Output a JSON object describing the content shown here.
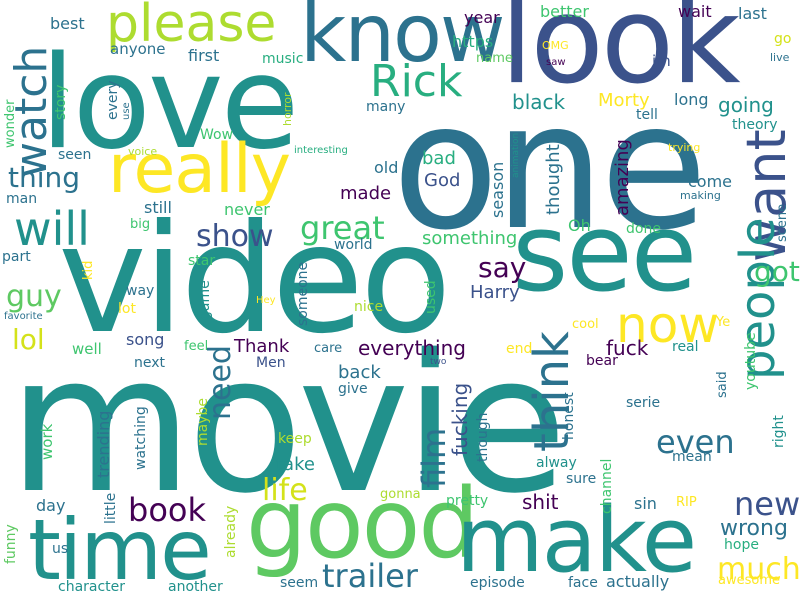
{
  "words": {
    "movie": "movie",
    "video": "video",
    "one": "one",
    "love": "love",
    "look": "look",
    "see": "see",
    "know": "know",
    "good": "good",
    "make": "make",
    "time": "time",
    "really": "really",
    "please": "please",
    "watch": "watch",
    "Rick": "Rick",
    "will": "will",
    "want": "want",
    "people": "people",
    "think": "think",
    "now": "now",
    "trailer": "trailer",
    "much": "much",
    "even": "even",
    "film": "film",
    "life": "life",
    "book": "book",
    "new": "new",
    "great": "great",
    "show": "show",
    "guy": "guy",
    "lol": "lol",
    "got": "got",
    "need": "need",
    "thing": "thing",
    "say": "say",
    "wrong": "wrong",
    "fucking": "fucking",
    "shit": "shit",
    "fuck": "fuck",
    "everything": "everything",
    "going": "going",
    "black": "black",
    "Morty": "Morty",
    "amazing": "amazing",
    "thought": "thought",
    "season": "season",
    "God": "God",
    "bad": "bad",
    "made": "made",
    "old": "old",
    "something": "something",
    "Harry": "Harry",
    "Thank": "Thank",
    "back": "back",
    "take": "take",
    "https": "https",
    "best": "best",
    "anyone": "anyone",
    "first": "first",
    "music": "music",
    "every": "every",
    "story": "story",
    "wonder": "wonder",
    "seen": "seen",
    "man": "man",
    "still": "still",
    "never": "never",
    "part": "part",
    "star": "star",
    "way": "way",
    "song": "song",
    "well": "well",
    "next": "next",
    "Men": "Men",
    "give": "give",
    "care": "care",
    "nice": "nice",
    "used": "used",
    "end": "end",
    "real": "real",
    "bear": "bear",
    "youtube": "youtube",
    "right": "right",
    "said": "said",
    "serie": "serie",
    "honest": "honest",
    "though": "though",
    "alway": "alway",
    "mean": "mean",
    "sure": "sure",
    "pretty": "pretty",
    "sin": "sin",
    "RIP": "RIP",
    "channel": "channel",
    "hope": "hope",
    "awesome": "awesome",
    "actually": "actually",
    "face": "face",
    "episode": "episode",
    "seem": "seem",
    "another": "another",
    "character": "character",
    "funny": "funny",
    "us": "us",
    "little": "little",
    "already": "already",
    "day": "day",
    "trending": "trending",
    "work": "work",
    "watching": "watching",
    "maybe": "maybe",
    "keep": "keep",
    "gonna": "gonna",
    "feel": "feel",
    "lot": "lot",
    "game": "game",
    "someone": "someone",
    "world": "world",
    "Oh": "Oh",
    "done": "done",
    "scene": "scene",
    "making": "making",
    "come": "come",
    "trying": "trying",
    "theory": "theory",
    "tell": "tell",
    "long": "long",
    "wait": "wait",
    "last": "last",
    "better": "better",
    "year": "year",
    "name": "name",
    "OMG": "OMG",
    "saw": "saw",
    "im": "im",
    "go": "go",
    "live": "live",
    "horror": "horror",
    "use": "use",
    "voice": "voice",
    "interesting": "interesting",
    "animation": "animation",
    "kid": "kid",
    "big": "big",
    "Hey": "Hey",
    "favorite": "favorite",
    "cool": "cool",
    "Ye": "Ye",
    "two": "two",
    "Wow": "Wow",
    "many": "many"
  },
  "palette": {
    "background": "#ffffff",
    "dark_purple": "#440154",
    "indigo": "#3b528b",
    "blue": "#2c728e",
    "teal": "#21918c",
    "green": "#28ae80",
    "lime": "#7ad151",
    "yellow": "#fde725"
  }
}
